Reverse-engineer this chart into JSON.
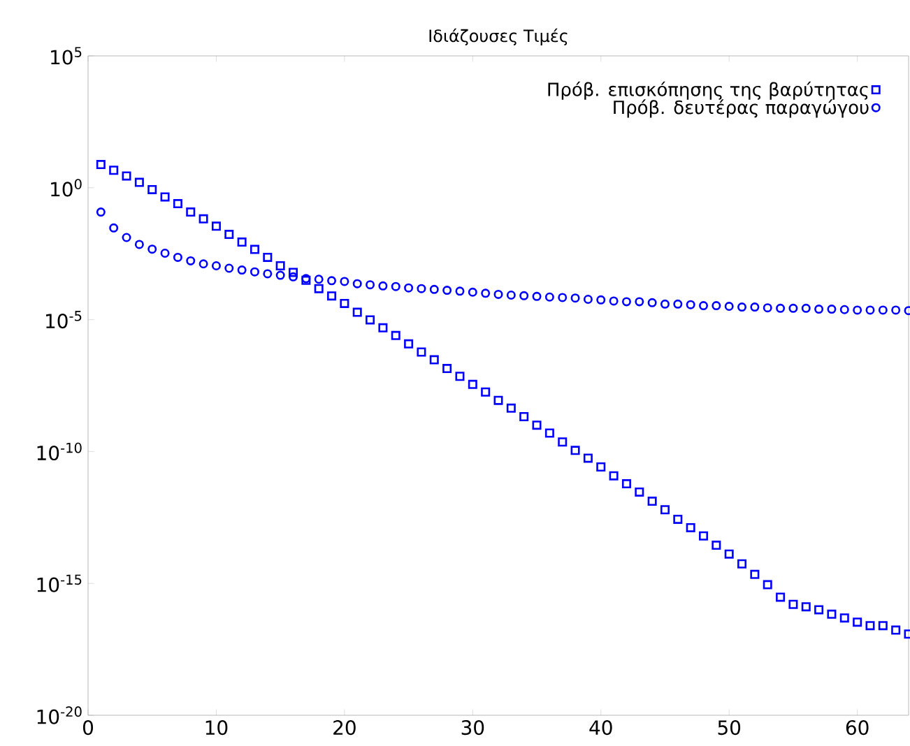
{
  "chart_data": {
    "type": "scatter",
    "title": "Ιδιάζουσες Τιμές",
    "x": [
      1,
      2,
      3,
      4,
      5,
      6,
      7,
      8,
      9,
      10,
      11,
      12,
      13,
      14,
      15,
      16,
      17,
      18,
      19,
      20,
      21,
      22,
      23,
      24,
      25,
      26,
      27,
      28,
      29,
      30,
      31,
      32,
      33,
      34,
      35,
      36,
      37,
      38,
      39,
      40,
      41,
      42,
      43,
      44,
      45,
      46,
      47,
      48,
      49,
      50,
      51,
      52,
      53,
      54,
      55,
      56,
      57,
      58,
      59,
      60,
      61,
      62,
      63,
      64
    ],
    "series": [
      {
        "name": "Πρόβ. επισκόπησης της βαρύτητας",
        "color": "#0000ff",
        "marker": "square",
        "values": [
          7.6,
          4.6,
          2.8,
          1.6,
          0.85,
          0.45,
          0.25,
          0.12,
          0.066,
          0.035,
          0.017,
          0.0087,
          0.0046,
          0.0023,
          0.0011,
          0.00062,
          0.00031,
          0.00015,
          7.9e-05,
          4.1e-05,
          1.9e-05,
          9.8e-06,
          4.9e-06,
          2.5e-06,
          1.2e-06,
          5.9e-07,
          3e-07,
          1.4e-07,
          7.1e-08,
          3.5e-08,
          1.8e-08,
          8.7e-09,
          4.4e-09,
          2.1e-09,
          1e-09,
          5e-10,
          2.3e-10,
          1.1e-10,
          5.6e-11,
          2.6e-11,
          1.2e-11,
          6e-12,
          2.9e-12,
          1.3e-12,
          6.2e-13,
          2.7e-13,
          1.3e-13,
          6.3e-14,
          2.8e-14,
          1.3e-14,
          5.5e-15,
          2.2e-15,
          8.9e-16,
          3e-16,
          1.6e-16,
          1.3e-16,
          1e-16,
          6.8e-17,
          4.9e-17,
          3.4e-17,
          2.5e-17,
          2.5e-17,
          1.7e-17,
          1.2e-17
        ]
      },
      {
        "name": "Πρόβ. δευτέρας παραγώγου",
        "color": "#0000ff",
        "marker": "circle",
        "values": [
          0.12,
          0.03,
          0.013,
          0.0071,
          0.0047,
          0.0033,
          0.0023,
          0.0017,
          0.0013,
          0.0011,
          0.00089,
          0.00076,
          0.00065,
          0.00055,
          0.00048,
          0.00042,
          0.00036,
          0.00034,
          0.0003,
          0.00028,
          0.00023,
          0.00021,
          0.00019,
          0.00018,
          0.00016,
          0.00015,
          0.00014,
          0.00013,
          0.00012,
          0.00011,
          0.0001,
          9.1e-05,
          8.5e-05,
          8.1e-05,
          7.6e-05,
          7.2e-05,
          6.9e-05,
          6.6e-05,
          5.9e-05,
          5.6e-05,
          5.1e-05,
          4.8e-05,
          4.8e-05,
          4.4e-05,
          3.9e-05,
          3.9e-05,
          3.7e-05,
          3.4e-05,
          3.4e-05,
          3.2e-05,
          3e-05,
          3e-05,
          2.8e-05,
          2.7e-05,
          2.7e-05,
          2.7e-05,
          2.5e-05,
          2.5e-05,
          2.4e-05,
          2.3e-05,
          2.3e-05,
          2.3e-05,
          2.3e-05,
          2.2e-05
        ]
      }
    ],
    "xlim": [
      0,
      64
    ],
    "ylim": [
      1e-20,
      100000.0
    ],
    "xticks": [
      0,
      10,
      20,
      30,
      40,
      50,
      60
    ],
    "yticks": [
      {
        "value": 1e-20,
        "label": "10$^{-20}$"
      },
      {
        "value": 1e-15,
        "label": "10$^{-15}$"
      },
      {
        "value": 1e-10,
        "label": "10$^{-10}$"
      },
      {
        "value": 1e-05,
        "label": "10$^{-5}$"
      },
      {
        "value": 1,
        "label": "10$^{0}$"
      },
      {
        "value": 100000.0,
        "label": "10$^{5}$"
      }
    ],
    "log": "y",
    "legend": "top right"
  }
}
